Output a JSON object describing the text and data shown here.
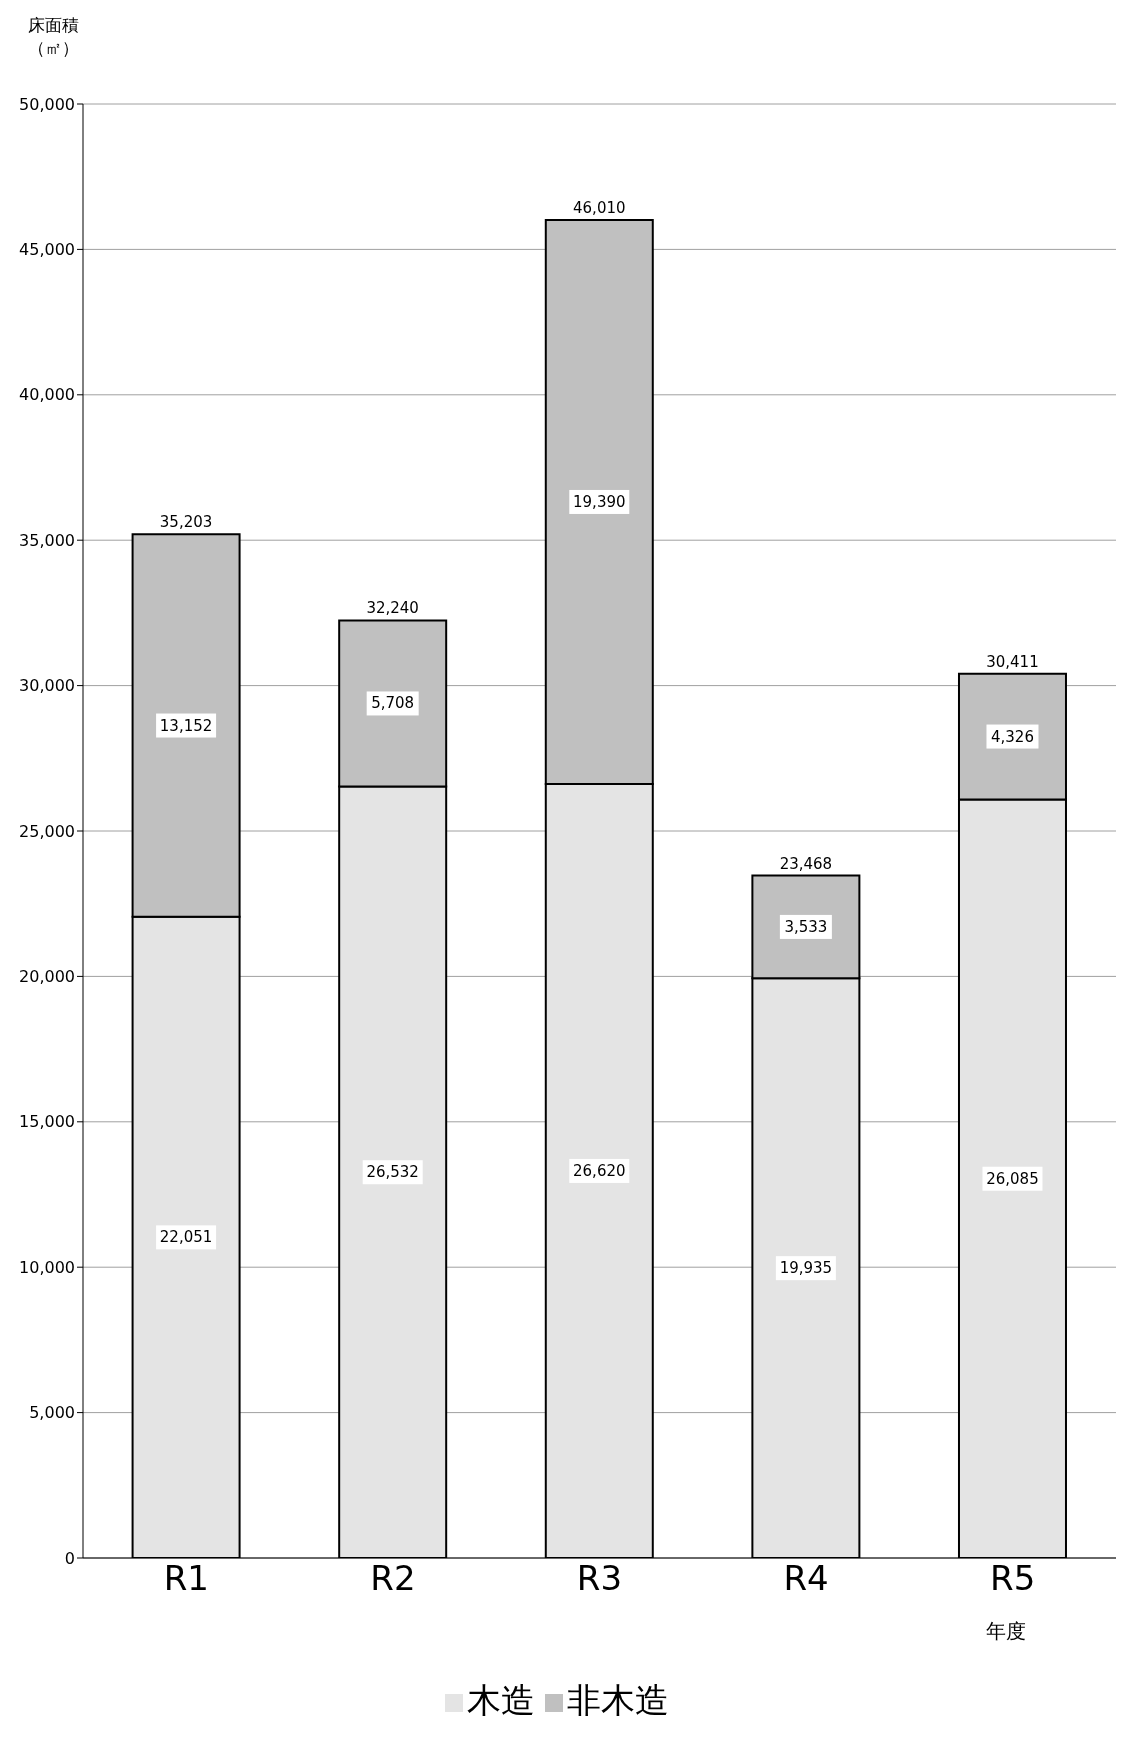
{
  "chart_data": {
    "type": "bar",
    "stacked": true,
    "ylabel": "床面積（㎡）",
    "xlabel": "年度",
    "categories": [
      "R1",
      "R2",
      "R3",
      "R4",
      "R5"
    ],
    "series": [
      {
        "name": "木造",
        "color": "#e4e4e4",
        "values": [
          22051,
          26532,
          26620,
          19935,
          26085
        ],
        "value_labels": [
          "22,051",
          "26,532",
          "26,620",
          "19,935",
          "26,085"
        ]
      },
      {
        "name": "非木造",
        "color": "#c0c0c0",
        "values": [
          13152,
          5708,
          19390,
          3533,
          4326
        ],
        "value_labels": [
          "13,152",
          "5,708",
          "19,390",
          "3,533",
          "4,326"
        ]
      }
    ],
    "totals": [
      "35,203",
      "32,240",
      "46,010",
      "23,468",
      "30,411"
    ],
    "ylim": [
      0,
      50000
    ],
    "yticks": [
      0,
      {
        "value": 5000,
        "label": "5,000"
      },
      {
        "value": 10000,
        "label": "10,000"
      },
      {
        "value": 15000,
        "label": "15,000"
      },
      {
        "value": 20000,
        "label": "20,000"
      },
      {
        "value": 25000,
        "label": "25,000"
      },
      {
        "value": 30000,
        "label": "30,000"
      },
      {
        "value": 35000,
        "label": "35,000"
      },
      {
        "value": 40000,
        "label": "40,000"
      },
      {
        "value": 45000,
        "label": "45,000"
      },
      {
        "value": 50000,
        "label": "50,000"
      }
    ],
    "grid": "y",
    "legend": "bottom"
  }
}
